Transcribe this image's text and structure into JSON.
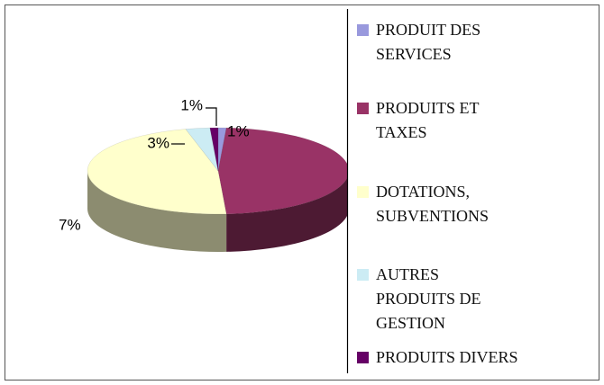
{
  "chart_data": {
    "type": "pie3d",
    "series": [
      {
        "name": "PRODUIT DES\nSERVICES",
        "color": "#9999dd",
        "values": [
          1
        ],
        "value_labels": [
          "1%"
        ]
      },
      {
        "name": "PRODUITS ET\nTAXES",
        "color": "#993366",
        "values": [
          48
        ],
        "value_labels": [
          null
        ]
      },
      {
        "name": "DOTATIONS,\nSUBVENTIONS",
        "color": "#ffffcc",
        "values": [
          47
        ],
        "value_labels": [
          null
        ]
      },
      {
        "name": "AUTRES\nPRODUITS DE\nGESTION",
        "color": "#ccecf4",
        "values": [
          3
        ],
        "value_labels": [
          "3%"
        ]
      },
      {
        "name": "PRODUITS DIVERS",
        "color": "#660066",
        "values": [
          1
        ],
        "value_labels": [
          "1%"
        ]
      }
    ],
    "annotations": [
      "7%"
    ]
  }
}
